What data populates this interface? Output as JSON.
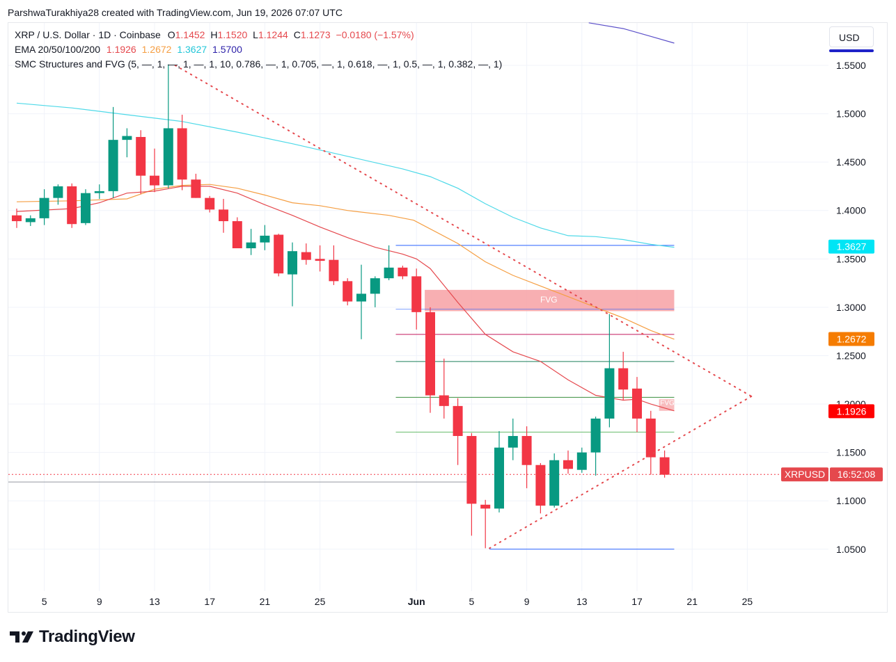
{
  "header": {
    "credit": "ParshwaTurakhiya28 created with TradingView.com, Jun 19, 2026 07:07 UTC"
  },
  "legend": {
    "symbol": "XRP / U.S. Dollar · 1D · Coinbase",
    "o_label": "O",
    "o_value": "1.1452",
    "h_label": "H",
    "h_value": "1.1520",
    "l_label": "L",
    "l_value": "1.1244",
    "c_label": "C",
    "c_value": "1.1273",
    "change": "−0.0180 (−1.57%)",
    "ema_label": "EMA 20/50/100/200",
    "ema20": "1.1926",
    "ema50": "1.2672",
    "ema100": "1.3627",
    "ema200": "1.5700",
    "smc": "SMC Structures and FVG (5, —, 1, —, 1, —, 1, 10, 0.786, —, 1, 0.705, —, 1, 0.618, —, 1, 0.5, —, 1, 0.382, —, 1)"
  },
  "currency_button": "USD",
  "footer": {
    "brand": "TradingView"
  },
  "colors": {
    "up": "#089981",
    "down": "#f23645",
    "ema20": "#e5484d",
    "ema50": "#f59e42",
    "ema100": "#4dd9e8",
    "ema200": "#5b4fc9",
    "fvg": "#f7a1a4",
    "trend": "#e5484d"
  },
  "chart_data": {
    "type": "candlestick",
    "y_axis": {
      "ticks": [
        "1.5500",
        "1.5000",
        "1.4500",
        "1.4000",
        "1.3500",
        "1.3000",
        "1.2500",
        "1.2000",
        "1.1500",
        "1.1000",
        "1.0500"
      ],
      "range": [
        1.0,
        1.6
      ]
    },
    "x_axis": {
      "tick_labels": [
        "5",
        "9",
        "13",
        "17",
        "21",
        "25",
        "Jun",
        "5",
        "9",
        "13",
        "17",
        "21",
        "25"
      ]
    },
    "price_tags": {
      "ema100": "1.3627",
      "ema50": "1.2672",
      "ema20": "1.1926",
      "symbol": "XRPUSD",
      "countdown": "16:52:08"
    },
    "annotations": {
      "fvg_label": "FVG",
      "fvg_small_label": "FVG"
    },
    "candles": [
      {
        "o": 1.395,
        "h": 1.402,
        "l": 1.382,
        "c": 1.389
      },
      {
        "o": 1.388,
        "h": 1.395,
        "l": 1.384,
        "c": 1.392
      },
      {
        "o": 1.392,
        "h": 1.422,
        "l": 1.385,
        "c": 1.413
      },
      {
        "o": 1.413,
        "h": 1.427,
        "l": 1.406,
        "c": 1.425
      },
      {
        "o": 1.425,
        "h": 1.428,
        "l": 1.382,
        "c": 1.386
      },
      {
        "o": 1.387,
        "h": 1.422,
        "l": 1.385,
        "c": 1.418
      },
      {
        "o": 1.418,
        "h": 1.427,
        "l": 1.412,
        "c": 1.42
      },
      {
        "o": 1.42,
        "h": 1.507,
        "l": 1.413,
        "c": 1.473
      },
      {
        "o": 1.473,
        "h": 1.485,
        "l": 1.455,
        "c": 1.477
      },
      {
        "o": 1.476,
        "h": 1.483,
        "l": 1.417,
        "c": 1.436
      },
      {
        "o": 1.436,
        "h": 1.464,
        "l": 1.419,
        "c": 1.426
      },
      {
        "o": 1.426,
        "h": 1.551,
        "l": 1.423,
        "c": 1.485
      },
      {
        "o": 1.485,
        "h": 1.499,
        "l": 1.421,
        "c": 1.432
      },
      {
        "o": 1.432,
        "h": 1.438,
        "l": 1.413,
        "c": 1.413
      },
      {
        "o": 1.413,
        "h": 1.415,
        "l": 1.398,
        "c": 1.401
      },
      {
        "o": 1.401,
        "h": 1.412,
        "l": 1.377,
        "c": 1.389
      },
      {
        "o": 1.389,
        "h": 1.393,
        "l": 1.361,
        "c": 1.361
      },
      {
        "o": 1.361,
        "h": 1.381,
        "l": 1.354,
        "c": 1.367
      },
      {
        "o": 1.367,
        "h": 1.385,
        "l": 1.359,
        "c": 1.374
      },
      {
        "o": 1.375,
        "h": 1.376,
        "l": 1.332,
        "c": 1.335
      },
      {
        "o": 1.334,
        "h": 1.367,
        "l": 1.301,
        "c": 1.358
      },
      {
        "o": 1.357,
        "h": 1.366,
        "l": 1.344,
        "c": 1.349
      },
      {
        "o": 1.35,
        "h": 1.364,
        "l": 1.337,
        "c": 1.348
      },
      {
        "o": 1.349,
        "h": 1.364,
        "l": 1.323,
        "c": 1.327
      },
      {
        "o": 1.327,
        "h": 1.33,
        "l": 1.302,
        "c": 1.306
      },
      {
        "o": 1.306,
        "h": 1.344,
        "l": 1.267,
        "c": 1.314
      },
      {
        "o": 1.314,
        "h": 1.332,
        "l": 1.3,
        "c": 1.33
      },
      {
        "o": 1.33,
        "h": 1.364,
        "l": 1.328,
        "c": 1.341
      },
      {
        "o": 1.341,
        "h": 1.343,
        "l": 1.329,
        "c": 1.332
      },
      {
        "o": 1.332,
        "h": 1.34,
        "l": 1.277,
        "c": 1.295
      },
      {
        "o": 1.295,
        "h": 1.3,
        "l": 1.191,
        "c": 1.209
      },
      {
        "o": 1.209,
        "h": 1.247,
        "l": 1.185,
        "c": 1.198
      },
      {
        "o": 1.198,
        "h": 1.206,
        "l": 1.137,
        "c": 1.167
      },
      {
        "o": 1.167,
        "h": 1.17,
        "l": 1.064,
        "c": 1.097
      },
      {
        "o": 1.096,
        "h": 1.101,
        "l": 1.051,
        "c": 1.092
      },
      {
        "o": 1.092,
        "h": 1.172,
        "l": 1.088,
        "c": 1.155
      },
      {
        "o": 1.155,
        "h": 1.185,
        "l": 1.142,
        "c": 1.167
      },
      {
        "o": 1.167,
        "h": 1.177,
        "l": 1.113,
        "c": 1.137
      },
      {
        "o": 1.137,
        "h": 1.139,
        "l": 1.087,
        "c": 1.095
      },
      {
        "o": 1.095,
        "h": 1.149,
        "l": 1.093,
        "c": 1.142
      },
      {
        "o": 1.142,
        "h": 1.152,
        "l": 1.128,
        "c": 1.133
      },
      {
        "o": 1.132,
        "h": 1.155,
        "l": 1.129,
        "c": 1.15
      },
      {
        "o": 1.15,
        "h": 1.187,
        "l": 1.126,
        "c": 1.185
      },
      {
        "o": 1.185,
        "h": 1.293,
        "l": 1.176,
        "c": 1.237
      },
      {
        "o": 1.237,
        "h": 1.254,
        "l": 1.204,
        "c": 1.215
      },
      {
        "o": 1.216,
        "h": 1.228,
        "l": 1.171,
        "c": 1.185
      },
      {
        "o": 1.185,
        "h": 1.193,
        "l": 1.127,
        "c": 1.145
      },
      {
        "o": 1.145,
        "h": 1.152,
        "l": 1.124,
        "c": 1.127
      }
    ]
  }
}
